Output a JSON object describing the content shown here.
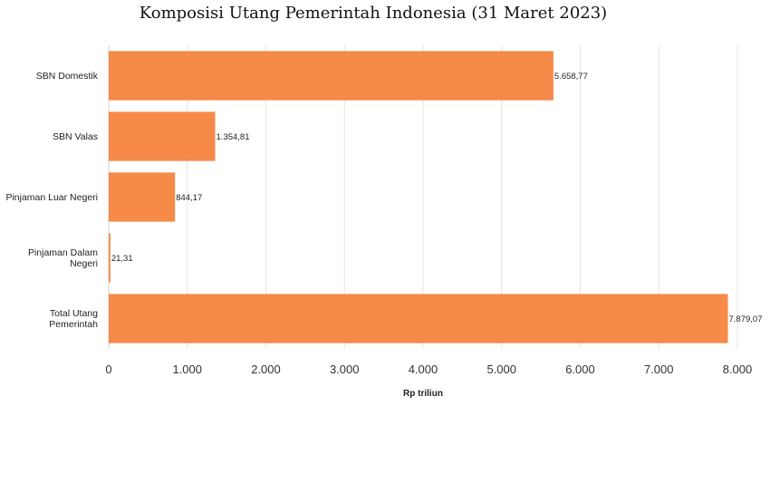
{
  "chart_data": {
    "type": "bar",
    "orientation": "horizontal",
    "title": "Komposisi Utang Pemerintah Indonesia (31 Maret 2023)",
    "xlabel": "Rp triliun",
    "ylabel": "",
    "xlim": [
      0,
      8000
    ],
    "xticks": [
      0,
      1000,
      2000,
      3000,
      4000,
      5000,
      6000,
      7000,
      8000
    ],
    "xtick_labels": [
      "0",
      "1.000",
      "2.000",
      "3.000",
      "4.000",
      "5.000",
      "6.000",
      "7.000",
      "8.000"
    ],
    "categories": [
      [
        "SBN Domestik"
      ],
      [
        "SBN Valas"
      ],
      [
        "Pinjaman Luar Negeri"
      ],
      [
        "Pinjaman Dalam",
        "Negeri"
      ],
      [
        "Total Utang",
        "Pemerintah"
      ]
    ],
    "values": [
      5658.77,
      1354.81,
      844.17,
      21.31,
      7879.07
    ],
    "value_labels": [
      "5.658,77",
      "1.354,81",
      "844,17",
      "21,31",
      "7.879,07"
    ],
    "bar_color": "#f4843f",
    "grid": true,
    "legend": "none"
  }
}
